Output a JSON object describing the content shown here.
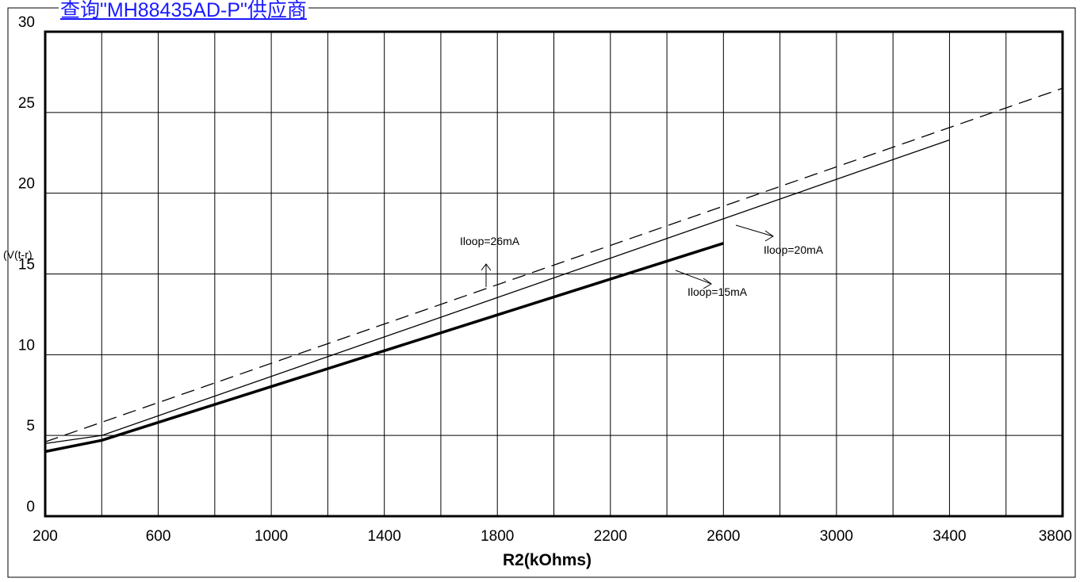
{
  "header": {
    "link_text": "查询\"MH88435AD-P\"供应商"
  },
  "chart_data": {
    "type": "line",
    "title": "",
    "xlabel": "R2(kOhms)",
    "ylabel": "(V(t-r)",
    "xlim": [
      200,
      3800
    ],
    "ylim": [
      0,
      30
    ],
    "grid": true,
    "xticks": [
      "200",
      "600",
      "1000",
      "1400",
      "1800",
      "2200",
      "2600",
      "3000",
      "3400",
      "3800"
    ],
    "yticks": [
      "0",
      "5",
      "10",
      "15",
      "20",
      "25",
      "30"
    ],
    "series": [
      {
        "name": "Iloop=26mA",
        "style": "dashed",
        "x": [
          200,
          3800
        ],
        "y": [
          4.6,
          26.5
        ]
      },
      {
        "name": "Iloop=20mA",
        "style": "thin",
        "x": [
          200,
          400,
          3400
        ],
        "y": [
          4.5,
          5.0,
          23.3
        ]
      },
      {
        "name": "Iloop=15mA",
        "style": "thick",
        "x": [
          200,
          400,
          2600
        ],
        "y": [
          4.0,
          4.7,
          16.9
        ]
      }
    ],
    "annotations": [
      {
        "text": "Iloop=26mA",
        "series": 0
      },
      {
        "text": "Iloop=20mA",
        "series": 1
      },
      {
        "text": "Iloop=15mA",
        "series": 2
      }
    ]
  }
}
